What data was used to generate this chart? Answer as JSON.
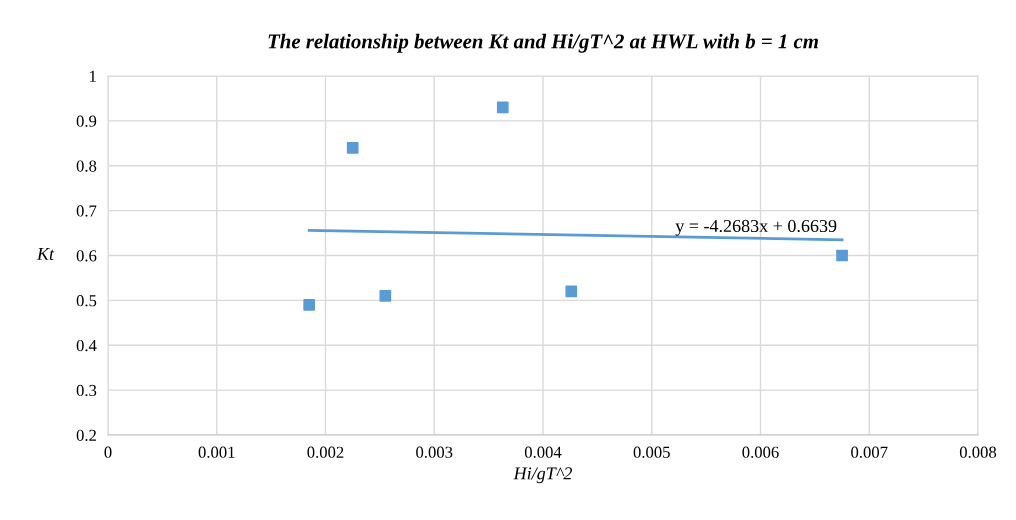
{
  "chart_data": {
    "type": "scatter",
    "title": "The relationship between Kt and Hi/gT^2 at HWL with b = 1 cm",
    "xlabel": "Hi/gT^2",
    "ylabel": "Kt",
    "series": [
      {
        "type": "scatter",
        "color": "#5b9bd5",
        "marker": "square",
        "x": [
          0.00185,
          0.00225,
          0.00255,
          0.00363,
          0.00426,
          0.00675
        ],
        "values": [
          0.49,
          0.84,
          0.51,
          0.93,
          0.52,
          0.6
        ]
      },
      {
        "type": "line",
        "color": "#5b9bd5",
        "marker": "none",
        "line_style": "solid",
        "x": [
          0.00185,
          0.00675
        ],
        "values": [
          0.656,
          0.635
        ]
      }
    ],
    "annotations": [
      "y = -4.2683x + 0.6639"
    ],
    "xlim": [
      0,
      0.008
    ],
    "xticks": [
      0,
      0.001,
      0.002,
      0.003,
      0.004,
      0.005,
      0.006,
      0.007,
      0.008
    ],
    "ylim": [
      0.2,
      1
    ],
    "yticks": [
      0.2,
      0.3,
      0.4,
      0.5,
      0.6,
      0.7,
      0.8,
      0.9,
      1
    ],
    "grid": true,
    "legend": false
  }
}
